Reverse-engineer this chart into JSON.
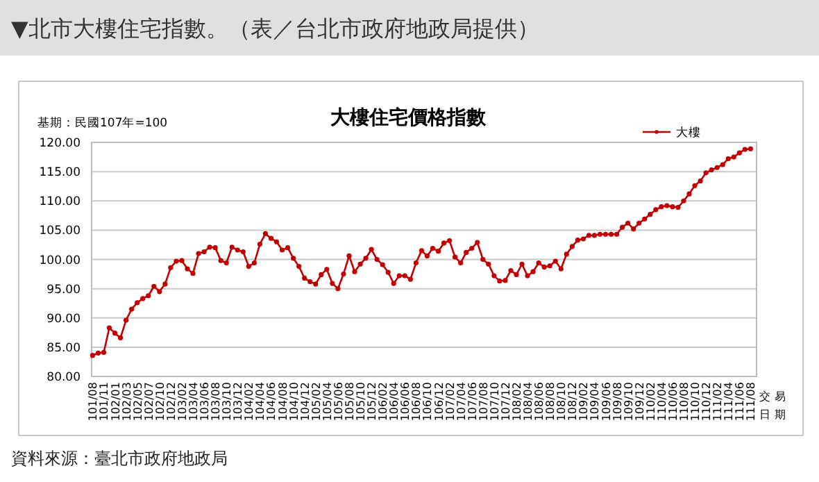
{
  "chart_data": {
    "type": "line",
    "title": "大樓住宅價格指數",
    "subtitle": "基期：民國107年=100",
    "xlabel": "交易日期",
    "annotations": [
      "▼北市大樓住宅指數。（表／台北市政府地政局提供）",
      "資料來源：臺北市政府地政局"
    ],
    "categories": [
      "101/08",
      null,
      "101/11",
      null,
      "102/01",
      null,
      "102/03",
      null,
      "102/05",
      null,
      "102/07",
      null,
      "102/10",
      null,
      "102/12",
      null,
      "103/02",
      null,
      "103/04",
      null,
      "103/06",
      null,
      "103/08",
      null,
      "103/10",
      null,
      "103/12",
      null,
      "104/02",
      null,
      "104/04",
      null,
      "104/06",
      null,
      "104/08",
      null,
      "104/10",
      null,
      "104/12",
      null,
      "105/02",
      null,
      "105/04",
      null,
      "105/06",
      null,
      "105/08",
      null,
      "105/10",
      null,
      "105/12",
      null,
      "106/02",
      null,
      "106/04",
      null,
      "106/06",
      null,
      "106/08",
      null,
      "106/10",
      null,
      "106/12",
      null,
      "107/02",
      null,
      "107/04",
      null,
      "107/06",
      null,
      "107/08",
      null,
      "107/10",
      null,
      "107/12",
      null,
      "108/02",
      null,
      "108/04",
      null,
      "108/06",
      null,
      "108/08",
      null,
      "108/10",
      null,
      "108/12",
      null,
      "109/02",
      null,
      "109/04",
      null,
      "109/06",
      null,
      "109/08",
      null,
      "109/10",
      null,
      "109/12",
      null,
      "110/02",
      null,
      "110/04",
      null,
      "110/06",
      null,
      "110/08",
      null,
      "110/10",
      null,
      "110/12",
      null,
      "111/02",
      null,
      "111/04",
      null,
      "111/06",
      null,
      "111/08"
    ],
    "series": [
      {
        "name": "大樓",
        "color": "#c00000",
        "values": [
          83.6,
          84.0,
          84.1,
          88.3,
          87.4,
          86.6,
          89.6,
          91.5,
          92.6,
          93.3,
          93.8,
          95.4,
          94.5,
          95.8,
          98.6,
          99.7,
          99.8,
          98.4,
          97.6,
          101.0,
          101.3,
          102.1,
          102.0,
          99.8,
          99.4,
          102.1,
          101.6,
          101.3,
          98.8,
          99.4,
          102.6,
          104.4,
          103.6,
          103.0,
          101.6,
          102.0,
          100.2,
          98.8,
          96.8,
          96.2,
          95.8,
          97.4,
          98.3,
          95.9,
          95.0,
          97.5,
          100.6,
          97.9,
          99.2,
          100.2,
          101.7,
          100.0,
          99.1,
          97.8,
          95.9,
          97.2,
          97.2,
          96.6,
          99.4,
          101.5,
          100.6,
          101.9,
          101.4,
          102.8,
          103.2,
          100.4,
          99.4,
          101.2,
          101.9,
          102.9,
          100.0,
          99.2,
          97.2,
          96.3,
          96.4,
          98.1,
          97.4,
          99.2,
          97.2,
          97.9,
          99.4,
          98.7,
          98.9,
          99.7,
          98.4,
          100.9,
          102.2,
          103.3,
          103.5,
          104.1,
          104.1,
          104.3,
          104.3,
          104.3,
          104.3,
          105.5,
          106.2,
          105.2,
          106.2,
          106.9,
          107.7,
          108.5,
          109.0,
          109.2,
          109.0,
          108.9,
          110.0,
          111.2,
          112.6,
          113.4,
          114.8,
          115.3,
          115.7,
          116.2,
          117.2,
          117.5,
          118.2,
          118.8,
          118.9
        ]
      }
    ],
    "ylim": [
      80,
      120
    ],
    "yticks": [
      {
        "value": 80,
        "label": "80.00"
      },
      {
        "value": 85,
        "label": "85.00"
      },
      {
        "value": 90,
        "label": "90.00"
      },
      {
        "value": 95,
        "label": "95.00"
      },
      {
        "value": 100,
        "label": "100.00"
      },
      {
        "value": 105,
        "label": "105.00"
      },
      {
        "value": 110,
        "label": "110.00"
      },
      {
        "value": 115,
        "label": "115.00"
      },
      {
        "value": 120,
        "label": "120.00"
      }
    ],
    "grid": "y",
    "legend": "top right",
    "marker": "circle",
    "line_style": "solid"
  }
}
